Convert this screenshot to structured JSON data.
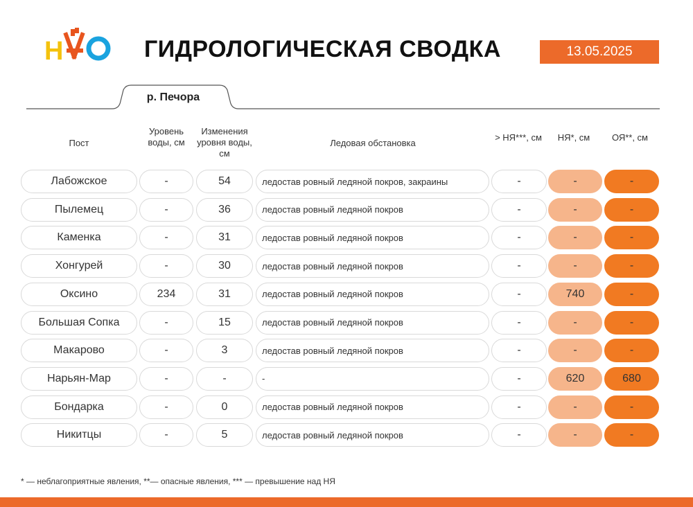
{
  "header": {
    "logo_text": "НАО",
    "title": "ГИДРОЛОГИЧЕСКАЯ СВОДКА",
    "date": "13.05.2025",
    "river_tab": "р. Печора"
  },
  "columns": {
    "post": "Пост",
    "level": "Уровень воды, см",
    "change": "Изменения уровня воды, см",
    "ice": "Ледовая обстановка",
    "above": "> НЯ***, см",
    "ny": "НЯ*, см",
    "oy": "ОЯ**, см"
  },
  "rows": [
    {
      "post": "Лабожское",
      "level": "-",
      "change": "54",
      "ice": "ледостав ровный ледяной покров, закраины",
      "above": "-",
      "ny": "-",
      "oy": "-"
    },
    {
      "post": "Пылемец",
      "level": "-",
      "change": "36",
      "ice": "ледостав ровный ледяной покров",
      "above": "-",
      "ny": "-",
      "oy": "-"
    },
    {
      "post": "Каменка",
      "level": "-",
      "change": "31",
      "ice": "ледостав ровный ледяной покров",
      "above": "-",
      "ny": "-",
      "oy": "-"
    },
    {
      "post": "Хонгурей",
      "level": "-",
      "change": "30",
      "ice": "ледостав ровный ледяной покров",
      "above": "-",
      "ny": "-",
      "oy": "-"
    },
    {
      "post": "Оксино",
      "level": "234",
      "change": "31",
      "ice": "ледостав ровный ледяной покров",
      "above": "-",
      "ny": "740",
      "oy": "-"
    },
    {
      "post": "Большая Сопка",
      "level": "-",
      "change": "15",
      "ice": "ледостав ровный ледяной покров",
      "above": "-",
      "ny": "-",
      "oy": "-"
    },
    {
      "post": "Макарово",
      "level": "-",
      "change": "3",
      "ice": "ледостав ровный ледяной покров",
      "above": "-",
      "ny": "-",
      "oy": "-"
    },
    {
      "post": "Нарьян-Мар",
      "level": "-",
      "change": "-",
      "ice": "-",
      "above": "-",
      "ny": "620",
      "oy": "680"
    },
    {
      "post": "Бондарка",
      "level": "-",
      "change": "0",
      "ice": "ледостав ровный ледяной покров",
      "above": "-",
      "ny": "-",
      "oy": "-"
    },
    {
      "post": "Никитцы",
      "level": "-",
      "change": "5",
      "ice": "ледостав ровный ледяной покров",
      "above": "-",
      "ny": "-",
      "oy": "-"
    }
  ],
  "footnote": "* — неблагоприятные явления, **— опасные явления, *** — превышение над НЯ",
  "colors": {
    "accent": "#ec6a2a",
    "ny_fill": "#f6b58b",
    "oy_fill": "#f17a22"
  }
}
